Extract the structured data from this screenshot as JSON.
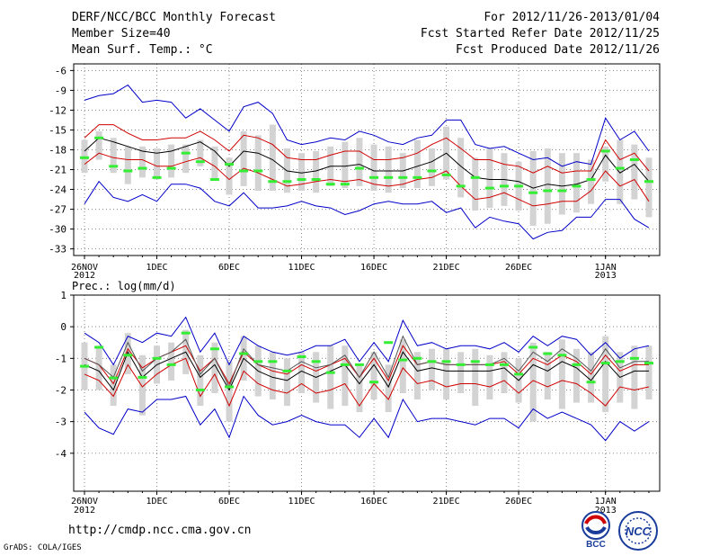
{
  "header": {
    "line1": "DERF/NCC/BCC Monthly Forecast",
    "line2": "Member Size=40",
    "line3": "Mean Surf. Temp.: °C",
    "right1": "For 2012/11/26-2013/01/04",
    "right2": "Fcst Started Refer Date 2012/11/25",
    "right3": "Fcst Produced Date 2012/11/26"
  },
  "footer": {
    "url": "http://cmdp.ncc.cma.gov.cn",
    "grads": "GrADS: COLA/IGES",
    "logo_bcc_text": "BCC",
    "logo_ncc_text": "NCC"
  },
  "colors": {
    "mean": "#000000",
    "spread": "#d00000",
    "envelope": "#0000c8",
    "box": "#d3d3d3",
    "obs": "#33ee33",
    "grid": "#888888"
  },
  "chart_data": [
    {
      "type": "line",
      "title": "Mean Surf. Temp.: °C",
      "ylabel": "°C",
      "ylim": [
        -34,
        -5
      ],
      "yticks": [
        -6,
        -9,
        -12,
        -15,
        -18,
        -21,
        -24,
        -27,
        -30,
        -33
      ],
      "x": [
        1,
        2,
        3,
        4,
        5,
        6,
        7,
        8,
        9,
        10,
        11,
        12,
        13,
        14,
        15,
        16,
        17,
        18,
        19,
        20,
        21,
        22,
        23,
        24,
        25,
        26,
        27,
        28,
        29,
        30,
        31,
        32,
        33,
        34,
        35,
        36,
        37,
        38,
        39,
        40
      ],
      "xticks": [
        {
          "day": 1,
          "label": "26NOV",
          "sub": "2012"
        },
        {
          "day": 6,
          "label": "1DEC"
        },
        {
          "day": 11,
          "label": "6DEC"
        },
        {
          "day": 16,
          "label": "11DEC"
        },
        {
          "day": 21,
          "label": "16DEC"
        },
        {
          "day": 26,
          "label": "21DEC"
        },
        {
          "day": 31,
          "label": "26DEC"
        },
        {
          "day": 37,
          "label": "1JAN",
          "sub": "2013"
        }
      ],
      "series": [
        {
          "name": "max",
          "role": "envelope",
          "values": [
            -10.5,
            -9.8,
            -9.5,
            -8.2,
            -10.8,
            -10.5,
            -10.8,
            -13.2,
            -11.8,
            -13.5,
            -15.2,
            -11.5,
            -10.8,
            -12.5,
            -16.5,
            -17.2,
            -16.8,
            -16.2,
            -16.5,
            -15.2,
            -15.8,
            -16.8,
            -17.2,
            -16.2,
            -15.8,
            -13.5,
            -13.5,
            -17.2,
            -17.8,
            -17.5,
            -18.5,
            -19.5,
            -19.2,
            -20.5,
            -19.8,
            -20.2,
            -13.2,
            -16.5,
            -15.2,
            -18.2
          ]
        },
        {
          "name": "spread-upper",
          "role": "spread",
          "values": [
            -16.2,
            -14.2,
            -14.2,
            -15.5,
            -16.5,
            -16.5,
            -16.2,
            -16.2,
            -15.2,
            -16.5,
            -18.2,
            -15.8,
            -16.2,
            -17.2,
            -19.2,
            -19.5,
            -19.5,
            -18.8,
            -18.2,
            -18.2,
            -19.5,
            -19.5,
            -19.2,
            -18.5,
            -17.2,
            -16.2,
            -17.8,
            -19.5,
            -19.5,
            -20.2,
            -20.5,
            -21.5,
            -20.5,
            -21.5,
            -21.2,
            -21.2,
            -16.5,
            -19.5,
            -18.5,
            -21.2
          ]
        },
        {
          "name": "ensemble-mean",
          "role": "mean",
          "values": [
            -18.2,
            -16.2,
            -16.8,
            -17.5,
            -18.2,
            -18.5,
            -18.2,
            -17.5,
            -16.8,
            -18.2,
            -20.5,
            -18.2,
            -18.5,
            -19.5,
            -21.2,
            -21.5,
            -21.2,
            -20.5,
            -20.5,
            -20.2,
            -21.2,
            -21.2,
            -21.2,
            -20.5,
            -19.8,
            -18.5,
            -20.5,
            -22.2,
            -22.5,
            -22.5,
            -22.8,
            -23.8,
            -23.2,
            -23.5,
            -23.2,
            -22.5,
            -18.8,
            -21.5,
            -20.2,
            -22.8
          ]
        },
        {
          "name": "spread-lower",
          "role": "spread",
          "values": [
            -20.2,
            -18.5,
            -19.2,
            -19.5,
            -19.5,
            -20.5,
            -20.5,
            -19.8,
            -19.2,
            -20.5,
            -22.5,
            -20.8,
            -21.5,
            -22.5,
            -23.5,
            -23.2,
            -22.8,
            -22.5,
            -22.8,
            -22.5,
            -23.2,
            -23.5,
            -23.2,
            -22.5,
            -22.2,
            -21.2,
            -23.5,
            -25.5,
            -25.2,
            -24.5,
            -25.5,
            -26.5,
            -26.2,
            -25.8,
            -25.8,
            -24.2,
            -21.2,
            -23.5,
            -22.5,
            -25.8
          ]
        },
        {
          "name": "min",
          "role": "envelope",
          "values": [
            -26.2,
            -22.8,
            -25.2,
            -25.8,
            -24.8,
            -25.8,
            -23.2,
            -23.2,
            -23.8,
            -25.8,
            -26.5,
            -24.5,
            -26.8,
            -26.8,
            -26.5,
            -25.8,
            -26.5,
            -26.8,
            -27.8,
            -27.2,
            -26.2,
            -25.8,
            -26.2,
            -26.2,
            -25.8,
            -27.5,
            -26.8,
            -29.8,
            -28.2,
            -28.8,
            -29.2,
            -31.5,
            -30.5,
            -30.2,
            -28.2,
            -28.2,
            -25.5,
            -25.5,
            -28.5,
            -29.8
          ]
        }
      ],
      "boxes_low": [
        -21.5,
        -19.5,
        -21.5,
        -23.2,
        -22.2,
        -22.5,
        -22.2,
        -21.5,
        -20.5,
        -22.5,
        -24.8,
        -23.5,
        -24.2,
        -24.2,
        -24.5,
        -24.2,
        -24.5,
        -23.5,
        -23.8,
        -23.5,
        -24.2,
        -24.5,
        -23.8,
        -23.8,
        -23.5,
        -22.5,
        -25.2,
        -27.2,
        -26.8,
        -26.5,
        -27.2,
        -29.5,
        -29.2,
        -27.8,
        -27.5,
        -26.2,
        -22.8,
        -26.2,
        -25.5,
        -28.2
      ],
      "boxes_high": [
        -16.5,
        -15.2,
        -16.2,
        -17.5,
        -17.5,
        -17.8,
        -17.2,
        -17.2,
        -16.5,
        -17.5,
        -19.2,
        -15.2,
        -15.8,
        -14.2,
        -17.8,
        -18.5,
        -18.2,
        -17.5,
        -16.8,
        -16.2,
        -17.2,
        -17.5,
        -18.5,
        -16.5,
        -17.8,
        -14.5,
        -16.2,
        -19.2,
        -17.8,
        -18.5,
        -19.8,
        -18.2,
        -17.8,
        -18.5,
        -18.5,
        -19.5,
        -17.5,
        -16.5,
        -17.2,
        -19.2
      ],
      "observed": [
        -19.2,
        -16.2,
        -20.5,
        -21.2,
        -20.8,
        -22.2,
        -20.8,
        -18.5,
        -19.8,
        -22.5,
        -20.2,
        -21.2,
        -21.2,
        -22.8,
        -22.8,
        -22.5,
        -22.5,
        -23.2,
        -23.2,
        -20.8,
        -22.2,
        -22.2,
        -22.2,
        -22.2,
        -21.2,
        -21.8,
        -23.5,
        -22.2,
        -23.8,
        -23.5,
        -23.5,
        -24.5,
        -24.2,
        -24.2,
        -23.5,
        -22.5,
        -18.2,
        -20.8,
        -19.5,
        -22.8
      ]
    },
    {
      "type": "line",
      "title": "Prec.: log(mm/d)",
      "ylabel": "log(mm/d)",
      "ylim": [
        -5.2,
        1
      ],
      "yticks": [
        1,
        0,
        -1,
        -2,
        -3,
        -4
      ],
      "x": [
        1,
        2,
        3,
        4,
        5,
        6,
        7,
        8,
        9,
        10,
        11,
        12,
        13,
        14,
        15,
        16,
        17,
        18,
        19,
        20,
        21,
        22,
        23,
        24,
        25,
        26,
        27,
        28,
        29,
        30,
        31,
        32,
        33,
        34,
        35,
        36,
        37,
        38,
        39,
        40
      ],
      "xticks": [
        {
          "day": 1,
          "label": "26NOV",
          "sub": "2012"
        },
        {
          "day": 6,
          "label": "1DEC"
        },
        {
          "day": 11,
          "label": "6DEC"
        },
        {
          "day": 16,
          "label": "11DEC"
        },
        {
          "day": 21,
          "label": "16DEC"
        },
        {
          "day": 26,
          "label": "21DEC"
        },
        {
          "day": 31,
          "label": "26DEC"
        },
        {
          "day": 37,
          "label": "1JAN",
          "sub": "2013"
        }
      ],
      "series": [
        {
          "name": "max",
          "role": "envelope",
          "values": [
            -0.2,
            -0.5,
            -1.2,
            -0.3,
            -0.5,
            -0.2,
            -0.3,
            0.3,
            -0.8,
            -0.2,
            -1.2,
            -0.3,
            -0.6,
            -0.8,
            -0.9,
            -0.8,
            -0.6,
            -0.6,
            -0.4,
            -1.1,
            -0.5,
            -1.1,
            0.2,
            -0.6,
            -0.5,
            -0.7,
            -0.6,
            -0.6,
            -0.7,
            -0.5,
            -0.8,
            -0.3,
            -0.6,
            -0.3,
            -0.4,
            -0.9,
            -0.5,
            -1.0,
            -0.7,
            -0.6
          ]
        },
        {
          "name": "spread-upper",
          "role": "spread",
          "values": [
            -1.0,
            -1.2,
            -1.8,
            -0.7,
            -1.3,
            -1.0,
            -0.8,
            -0.6,
            -1.4,
            -1.0,
            -1.8,
            -0.8,
            -1.2,
            -1.4,
            -1.5,
            -1.2,
            -1.4,
            -1.2,
            -1.0,
            -1.6,
            -1.0,
            -1.7,
            -0.6,
            -1.2,
            -1.1,
            -1.2,
            -1.2,
            -1.2,
            -1.2,
            -1.1,
            -1.5,
            -1.0,
            -1.2,
            -0.9,
            -1.1,
            -1.5,
            -0.9,
            -1.4,
            -1.2,
            -1.2
          ]
        },
        {
          "name": "ensemble-mean",
          "role": "mean",
          "values": [
            -1.2,
            -1.4,
            -2.0,
            -0.8,
            -1.6,
            -1.2,
            -1.0,
            -0.8,
            -1.6,
            -1.2,
            -2.0,
            -1.0,
            -1.4,
            -1.6,
            -1.7,
            -1.4,
            -1.6,
            -1.4,
            -1.2,
            -1.8,
            -1.2,
            -1.9,
            -0.8,
            -1.4,
            -1.3,
            -1.4,
            -1.4,
            -1.4,
            -1.4,
            -1.3,
            -1.7,
            -1.2,
            -1.4,
            -1.1,
            -1.3,
            -1.7,
            -1.1,
            -1.6,
            -1.4,
            -1.4
          ]
        },
        {
          "name": "spread-lower",
          "role": "spread",
          "values": [
            -1.5,
            -1.7,
            -2.2,
            -1.2,
            -1.9,
            -1.5,
            -1.2,
            -1.0,
            -2.2,
            -1.5,
            -2.5,
            -1.4,
            -1.8,
            -2.0,
            -2.1,
            -1.8,
            -2.1,
            -2.0,
            -1.8,
            -2.5,
            -1.8,
            -2.3,
            -1.3,
            -1.8,
            -1.7,
            -1.9,
            -1.8,
            -1.8,
            -1.9,
            -1.7,
            -2.1,
            -1.7,
            -1.9,
            -1.7,
            -1.8,
            -2.1,
            -2.5,
            -1.9,
            -2.0,
            -1.9
          ]
        },
        {
          "name": "min",
          "role": "envelope",
          "values": [
            -2.7,
            -3.2,
            -3.4,
            -2.6,
            -2.7,
            -2.3,
            -2.3,
            -2.2,
            -3.1,
            -2.6,
            -3.5,
            -2.2,
            -2.8,
            -3.1,
            -3.0,
            -2.8,
            -3.0,
            -3.1,
            -3.1,
            -3.5,
            -2.9,
            -3.5,
            -2.3,
            -3.0,
            -2.9,
            -2.9,
            -3.0,
            -3.1,
            -2.9,
            -2.9,
            -3.2,
            -2.6,
            -2.9,
            -2.7,
            -2.9,
            -3.1,
            -3.6,
            -3.0,
            -3.3,
            -3.0
          ]
        },
        {
          "name": "alt-mean",
          "role": "aux",
          "values": [
            -1.0,
            -1.2,
            -1.6,
            -0.5,
            -1.4,
            -1.0,
            -0.8,
            -0.4,
            -1.5,
            -1.0,
            -1.9,
            -0.7,
            -1.2,
            -1.3,
            -1.4,
            -1.1,
            -1.3,
            -1.2,
            -0.9,
            -1.6,
            -0.8,
            -1.6,
            -0.3,
            -1.2,
            -1.1,
            -1.2,
            -1.2,
            -1.2,
            -1.2,
            -1.0,
            -1.4,
            -0.8,
            -1.1,
            -0.7,
            -1.0,
            -1.4,
            -0.7,
            -1.3,
            -1.1,
            -1.1
          ]
        }
      ],
      "boxes_low": [
        -2.0,
        -2.0,
        -2.5,
        -1.5,
        -2.8,
        -1.8,
        -1.7,
        -1.5,
        -2.5,
        -2.1,
        -3.0,
        -1.7,
        -2.2,
        -2.3,
        -2.5,
        -2.1,
        -2.4,
        -2.6,
        -2.5,
        -2.7,
        -2.3,
        -2.7,
        -2.1,
        -2.3,
        -2.0,
        -2.3,
        -2.1,
        -2.5,
        -2.3,
        -2.1,
        -2.4,
        -3.0,
        -2.3,
        -2.6,
        -2.4,
        -2.4,
        -2.7,
        -2.4,
        -2.6,
        -2.3
      ],
      "boxes_high": [
        -0.5,
        -0.6,
        -1.2,
        -0.2,
        -0.9,
        -0.6,
        -0.5,
        -0.1,
        -0.9,
        -0.5,
        -1.1,
        -0.3,
        -0.6,
        -0.8,
        -1.0,
        -0.8,
        -0.8,
        -0.6,
        -0.6,
        -1.2,
        -0.8,
        -1.2,
        -0.4,
        -0.8,
        -0.7,
        -0.7,
        -0.8,
        -0.7,
        -0.9,
        -0.8,
        -1.0,
        -0.5,
        -0.8,
        -0.4,
        -0.7,
        -0.8,
        -0.3,
        -0.8,
        -0.6,
        -0.6
      ],
      "observed": [
        -1.25,
        -0.65,
        -1.62,
        -0.9,
        -1.6,
        -1.0,
        -1.2,
        -0.2,
        -2.0,
        -0.7,
        -1.9,
        -0.85,
        -1.1,
        -1.1,
        -1.4,
        -0.95,
        -1.1,
        -1.45,
        -1.2,
        -1.2,
        -1.75,
        -0.5,
        -1.05,
        -1.0,
        -1.1,
        -1.1,
        -1.2,
        -1.1,
        -1.2,
        -1.2,
        -1.5,
        -0.65,
        -0.85,
        -0.9,
        -1.2,
        -1.75,
        -1.15,
        -1.1,
        -1.0,
        -1.15
      ]
    }
  ]
}
